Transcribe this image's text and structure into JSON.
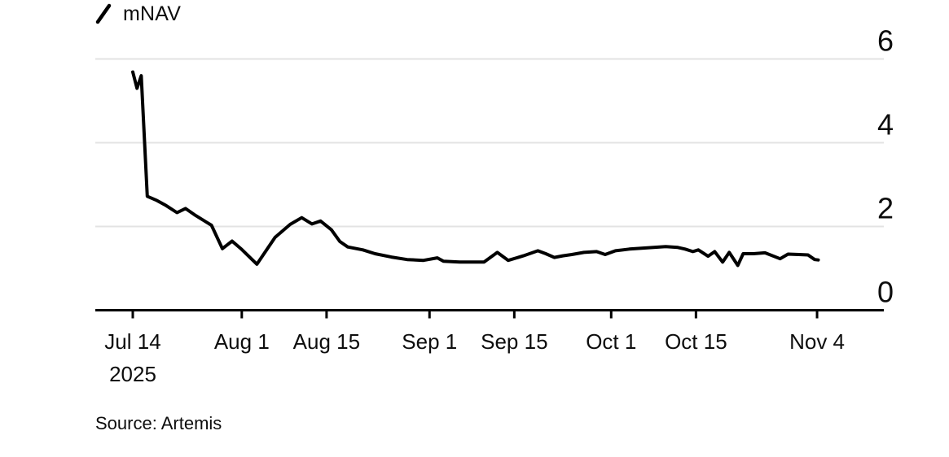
{
  "legend": {
    "label": "mNAV",
    "marker": "diagonal-line"
  },
  "source": "Source: Artemis",
  "colors": {
    "line": "#000000",
    "grid": "#e3e3e3",
    "axis": "#000000",
    "text": "#0d0d0d",
    "background": "#ffffff"
  },
  "chart_data": {
    "type": "line",
    "title": "",
    "xlabel": "",
    "ylabel": "",
    "legend_position": "top-left",
    "grid": "horizontal",
    "y_axis": {
      "side": "right",
      "range": [
        0,
        6
      ],
      "ticks": [
        {
          "value": 6,
          "label": "6"
        },
        {
          "value": 4,
          "label": "4"
        },
        {
          "value": 2,
          "label": "2"
        },
        {
          "value": 0,
          "label": "0"
        }
      ]
    },
    "x_axis": {
      "unit": "days since Jul 14, 2025",
      "range": [
        0,
        113.5
      ],
      "ticks": [
        {
          "day": 0,
          "label": "Jul 14",
          "sublabel": "2025"
        },
        {
          "day": 18,
          "label": "Aug 1"
        },
        {
          "day": 32,
          "label": "Aug 15"
        },
        {
          "day": 49,
          "label": "Sep 1"
        },
        {
          "day": 63,
          "label": "Sep 15"
        },
        {
          "day": 79,
          "label": "Oct 1"
        },
        {
          "day": 93,
          "label": "Oct 15"
        },
        {
          "day": 113,
          "label": "Nov 4"
        }
      ]
    },
    "series": [
      {
        "name": "mNAV",
        "points": [
          [
            0,
            5.69
          ],
          [
            0.7,
            5.3
          ],
          [
            1.4,
            5.6
          ],
          [
            2.4,
            2.72
          ],
          [
            4,
            2.62
          ],
          [
            5.5,
            2.5
          ],
          [
            7.3,
            2.33
          ],
          [
            8.7,
            2.43
          ],
          [
            10.4,
            2.26
          ],
          [
            13,
            2.03
          ],
          [
            14.8,
            1.47
          ],
          [
            16.4,
            1.65
          ],
          [
            18,
            1.45
          ],
          [
            20.5,
            1.1
          ],
          [
            23.5,
            1.74
          ],
          [
            26,
            2.05
          ],
          [
            27.9,
            2.21
          ],
          [
            29.6,
            2.06
          ],
          [
            31,
            2.13
          ],
          [
            32.8,
            1.92
          ],
          [
            34.2,
            1.64
          ],
          [
            35.5,
            1.51
          ],
          [
            38,
            1.44
          ],
          [
            40,
            1.35
          ],
          [
            42.7,
            1.27
          ],
          [
            45.3,
            1.21
          ],
          [
            48,
            1.19
          ],
          [
            50.3,
            1.25
          ],
          [
            51.3,
            1.17
          ],
          [
            54,
            1.15
          ],
          [
            58,
            1.15
          ],
          [
            60.2,
            1.38
          ],
          [
            62,
            1.19
          ],
          [
            64.5,
            1.3
          ],
          [
            66.9,
            1.42
          ],
          [
            68.2,
            1.35
          ],
          [
            69.6,
            1.26
          ],
          [
            71,
            1.3
          ],
          [
            72.5,
            1.33
          ],
          [
            74.5,
            1.38
          ],
          [
            76.6,
            1.4
          ],
          [
            78,
            1.33
          ],
          [
            79.7,
            1.42
          ],
          [
            82,
            1.46
          ],
          [
            84,
            1.48
          ],
          [
            86,
            1.5
          ],
          [
            88,
            1.52
          ],
          [
            90,
            1.5
          ],
          [
            91.2,
            1.46
          ],
          [
            92.5,
            1.4
          ],
          [
            93.4,
            1.44
          ],
          [
            95,
            1.29
          ],
          [
            96.1,
            1.4
          ],
          [
            97.4,
            1.15
          ],
          [
            98.5,
            1.38
          ],
          [
            99.9,
            1.07
          ],
          [
            100.8,
            1.35
          ],
          [
            102.5,
            1.35
          ],
          [
            104.4,
            1.37
          ],
          [
            106.9,
            1.23
          ],
          [
            108.2,
            1.34
          ],
          [
            110,
            1.33
          ],
          [
            111.5,
            1.32
          ],
          [
            112.6,
            1.21
          ],
          [
            113.2,
            1.2
          ]
        ]
      }
    ]
  }
}
